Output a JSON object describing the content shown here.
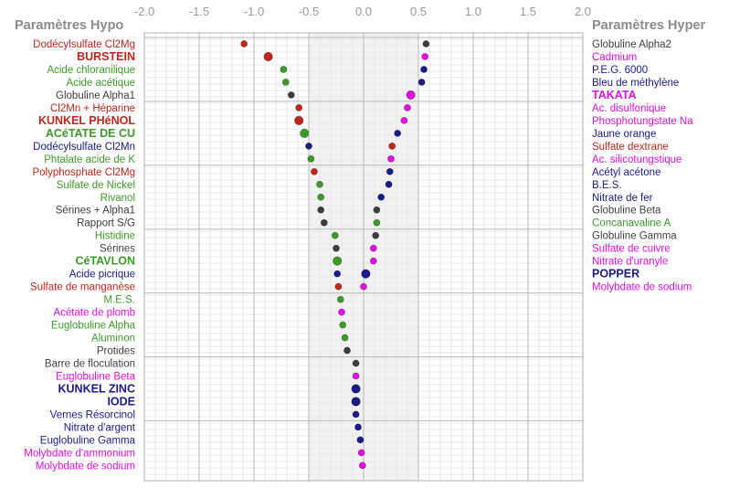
{
  "headers": {
    "left": "Paramètres Hypo",
    "right": "Paramètres Hyper"
  },
  "colors": {
    "black": "#3d3d3d",
    "red": "#c0261c",
    "green": "#3c9a28",
    "blue": "#1a1a8c",
    "magenta": "#e010e0",
    "gray": "#555555",
    "band": "#f2f2f2"
  },
  "chart_data": {
    "type": "scatter",
    "xlim": [
      -2.0,
      2.0
    ],
    "x_ticks": [
      "-2.0",
      "-1.5",
      "-1.0",
      "-0.5",
      "0.0",
      "0.5",
      "1.0",
      "1.5",
      "2.0"
    ],
    "grid": true,
    "left": [
      {
        "label": "Dodécylsulfate Cl2Mg",
        "value": -1.09,
        "color": "red",
        "bold": false
      },
      {
        "label": "BURSTEIN",
        "value": -0.87,
        "color": "red",
        "bold": true
      },
      {
        "label": "Acide chloranilique",
        "value": -0.73,
        "color": "green",
        "bold": false
      },
      {
        "label": "Acide acétique",
        "value": -0.71,
        "color": "green",
        "bold": false
      },
      {
        "label": "Globuline Alpha1",
        "value": -0.66,
        "color": "black",
        "bold": false
      },
      {
        "label": "Cl2Mn + Héparine",
        "value": -0.59,
        "color": "red",
        "bold": false
      },
      {
        "label": "KUNKEL PHéNOL",
        "value": -0.59,
        "color": "red",
        "bold": true
      },
      {
        "label": "ACéTATE DE CU",
        "value": -0.54,
        "color": "green",
        "bold": true
      },
      {
        "label": "Dodécylsulfate Cl2Mn",
        "value": -0.5,
        "color": "blue",
        "bold": false
      },
      {
        "label": "Phtalate acide de K",
        "value": -0.48,
        "color": "green",
        "bold": false
      },
      {
        "label": "Polyphosphate Cl2Mg",
        "value": -0.45,
        "color": "red",
        "bold": false
      },
      {
        "label": "Sulfate de Nickel",
        "value": -0.4,
        "color": "green",
        "bold": false
      },
      {
        "label": "Rivanol",
        "value": -0.39,
        "color": "green",
        "bold": false
      },
      {
        "label": "Sérines + Alpha1",
        "value": -0.39,
        "color": "black",
        "bold": false
      },
      {
        "label": "Rapport S/G",
        "value": -0.36,
        "color": "black",
        "bold": false
      },
      {
        "label": "Histidine",
        "value": -0.26,
        "color": "green",
        "bold": false
      },
      {
        "label": "Sérines",
        "value": -0.25,
        "color": "black",
        "bold": false
      },
      {
        "label": "CéTAVLON",
        "value": -0.24,
        "color": "green",
        "bold": true
      },
      {
        "label": "Acide picrique",
        "value": -0.24,
        "color": "blue",
        "bold": false
      },
      {
        "label": "Sulfate de manganèse",
        "value": -0.23,
        "color": "red",
        "bold": false
      },
      {
        "label": "M.E.S.",
        "value": -0.21,
        "color": "green",
        "bold": false
      },
      {
        "label": "Acétate de plomb",
        "value": -0.2,
        "color": "magenta",
        "bold": false
      },
      {
        "label": "Euglobuline Alpha",
        "value": -0.19,
        "color": "green",
        "bold": false
      },
      {
        "label": "Aluminon",
        "value": -0.17,
        "color": "green",
        "bold": false
      },
      {
        "label": "Protides",
        "value": -0.15,
        "color": "black",
        "bold": false
      },
      {
        "label": "Barre de floculation",
        "value": -0.07,
        "color": "black",
        "bold": false
      },
      {
        "label": "Euglobuline Beta",
        "value": -0.07,
        "color": "magenta",
        "bold": false
      },
      {
        "label": "KUNKEL ZINC",
        "value": -0.07,
        "color": "blue",
        "bold": true
      },
      {
        "label": "IODE",
        "value": -0.07,
        "color": "blue",
        "bold": true
      },
      {
        "label": "Vernes Résorcinol",
        "value": -0.07,
        "color": "blue",
        "bold": false
      },
      {
        "label": "Nitrate d'argent",
        "value": -0.05,
        "color": "blue",
        "bold": false
      },
      {
        "label": "Euglobuline Gamma",
        "value": -0.03,
        "color": "blue",
        "bold": false
      },
      {
        "label": "Molybdate d'ammonium",
        "value": -0.02,
        "color": "magenta",
        "bold": false
      },
      {
        "label": "Molybdate de sodium",
        "value": -0.01,
        "color": "magenta",
        "bold": false
      }
    ],
    "right": [
      {
        "label": "Globuline Alpha2",
        "value": 0.57,
        "color": "black",
        "bold": false
      },
      {
        "label": "Cadmium",
        "value": 0.56,
        "color": "magenta",
        "bold": false
      },
      {
        "label": "P.E.G. 6000",
        "value": 0.55,
        "color": "blue",
        "bold": false
      },
      {
        "label": "Bleu de méthylène",
        "value": 0.53,
        "color": "blue",
        "bold": false
      },
      {
        "label": "TAKATA",
        "value": 0.43,
        "color": "magenta",
        "bold": true
      },
      {
        "label": "Ac. disulfonique",
        "value": 0.4,
        "color": "magenta",
        "bold": false
      },
      {
        "label": "Phosphotungstate Na",
        "value": 0.37,
        "color": "magenta",
        "bold": false
      },
      {
        "label": "Jaune orange",
        "value": 0.31,
        "color": "blue",
        "bold": false
      },
      {
        "label": "Sulfate dextrane",
        "value": 0.26,
        "color": "red",
        "bold": false
      },
      {
        "label": "Ac. silicotungstique",
        "value": 0.25,
        "color": "magenta",
        "bold": false
      },
      {
        "label": "Acétyl acétone",
        "value": 0.24,
        "color": "blue",
        "bold": false
      },
      {
        "label": "B.E.S.",
        "value": 0.23,
        "color": "blue",
        "bold": false
      },
      {
        "label": "Nitrate de fer",
        "value": 0.16,
        "color": "blue",
        "bold": false
      },
      {
        "label": "Globuline Beta",
        "value": 0.12,
        "color": "black",
        "bold": false
      },
      {
        "label": "Concanavaline A",
        "value": 0.12,
        "color": "green",
        "bold": false
      },
      {
        "label": "Globuline Gamma",
        "value": 0.11,
        "color": "black",
        "bold": false
      },
      {
        "label": "Sulfate de cuivre",
        "value": 0.09,
        "color": "magenta",
        "bold": false
      },
      {
        "label": "Nitrate d'uranyle",
        "value": 0.09,
        "color": "magenta",
        "bold": false
      },
      {
        "label": "POPPER",
        "value": 0.02,
        "color": "blue",
        "bold": true
      },
      {
        "label": "Molybdate de sodium",
        "value": 0.0,
        "color": "magenta",
        "bold": false
      }
    ]
  }
}
